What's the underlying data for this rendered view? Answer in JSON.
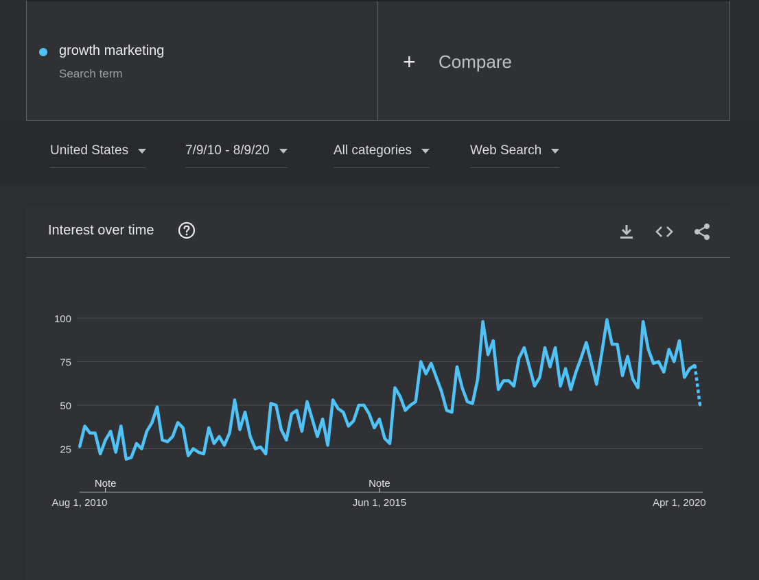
{
  "search": {
    "term": "growth marketing",
    "term_type": "Search term",
    "term_color": "#4fc3f7",
    "compare_label": "Compare",
    "compare_icon": "plus-icon"
  },
  "filters": [
    {
      "label": "United States",
      "icon": "caret-down-icon"
    },
    {
      "label": "7/9/10 - 8/9/20",
      "icon": "caret-down-icon"
    },
    {
      "label": "All categories",
      "icon": "caret-down-icon"
    },
    {
      "label": "Web Search",
      "icon": "caret-down-icon"
    }
  ],
  "panel": {
    "title": "Interest over time",
    "help_icon": "help-icon",
    "actions": [
      "download-icon",
      "embed-icon",
      "share-icon"
    ]
  },
  "chart_data": {
    "type": "line",
    "title": "Interest over time",
    "line_color": "#4fc3f7",
    "xlabel": "",
    "ylabel": "",
    "ylim": [
      0,
      100
    ],
    "yticks": [
      "100",
      "75",
      "50",
      "25"
    ],
    "ytick_values": [
      100,
      75,
      50,
      25
    ],
    "xticks": [
      "Aug 1, 2010",
      "Jun 1, 2015",
      "Apr 1, 2020"
    ],
    "xtick_indices": [
      0,
      58,
      116
    ],
    "notes": [
      {
        "label": "Note",
        "index": 5
      },
      {
        "label": "Note",
        "index": 58
      }
    ],
    "series": [
      {
        "name": "growth marketing",
        "values": [
          26,
          38,
          34,
          34,
          22,
          30,
          35,
          23,
          38,
          19,
          20,
          28,
          25,
          35,
          40,
          49,
          30,
          29,
          32,
          40,
          37,
          21,
          25,
          23,
          22,
          37,
          28,
          32,
          27,
          34,
          53,
          36,
          46,
          32,
          25,
          26,
          22,
          51,
          50,
          36,
          30,
          45,
          47,
          35,
          52,
          42,
          32,
          42,
          27,
          53,
          48,
          46,
          38,
          41,
          50,
          50,
          45,
          37,
          42,
          31,
          28,
          60,
          55,
          47,
          50,
          52,
          75,
          68,
          74,
          66,
          58,
          47,
          46,
          72,
          60,
          52,
          51,
          65,
          98,
          79,
          87,
          59,
          64,
          64,
          61,
          77,
          83,
          72,
          61,
          66,
          83,
          72,
          83,
          61,
          71,
          59,
          69,
          77,
          86,
          74,
          62,
          80,
          99,
          85,
          85,
          67,
          78,
          65,
          60,
          98,
          82,
          74,
          75,
          69,
          82,
          75,
          87,
          66,
          71,
          73,
          50
        ],
        "partial_from_index": 120
      }
    ]
  }
}
